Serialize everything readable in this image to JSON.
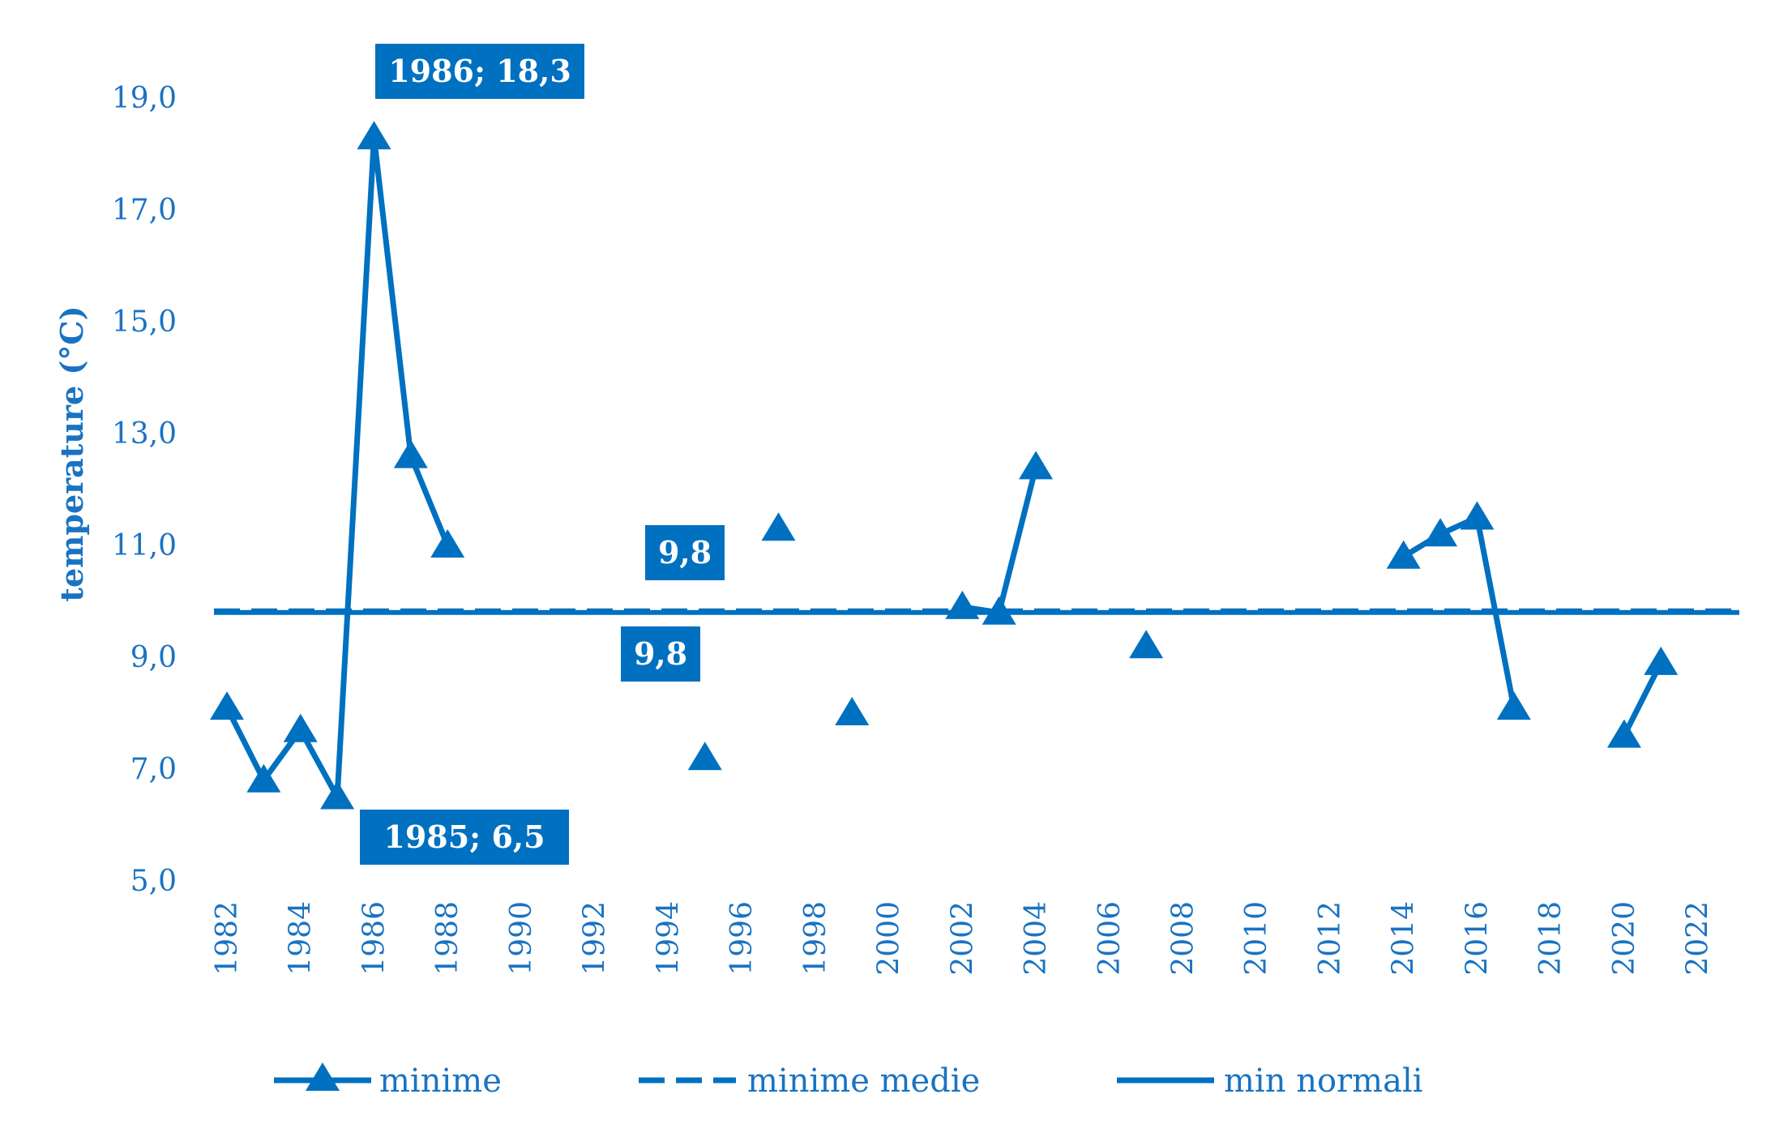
{
  "chart_data": {
    "type": "line",
    "ylabel": "temperature (°C)",
    "xlabel": "",
    "title": "",
    "ylim": [
      5.0,
      19.0
    ],
    "yticks": [
      "5,0",
      "7,0",
      "9,0",
      "11,0",
      "13,0",
      "15,0",
      "17,0",
      "19,0"
    ],
    "xlim": [
      1982,
      2023
    ],
    "xticks": [
      "1982",
      "1984",
      "1986",
      "1988",
      "1990",
      "1992",
      "1994",
      "1996",
      "1998",
      "2000",
      "2002",
      "2004",
      "2006",
      "2008",
      "2010",
      "2012",
      "2014",
      "2016",
      "2018",
      "2020",
      "2022"
    ],
    "colors": {
      "series": "#0070c0",
      "text": "#1a73c2"
    },
    "legend_position": "bottom",
    "series": [
      {
        "name": "minime",
        "style": "solid-triangle-markers",
        "points": [
          {
            "x": 1982,
            "y": 8.1
          },
          {
            "x": 1983,
            "y": 6.8
          },
          {
            "x": 1984,
            "y": 7.7
          },
          {
            "x": 1985,
            "y": 6.5
          },
          {
            "x": 1986,
            "y": 18.3
          },
          {
            "x": 1987,
            "y": 12.6
          },
          {
            "x": 1988,
            "y": 11.0
          },
          {
            "x": 1989,
            "y": null
          },
          {
            "x": 1990,
            "y": null
          },
          {
            "x": 1991,
            "y": null
          },
          {
            "x": 1992,
            "y": null
          },
          {
            "x": 1993,
            "y": null
          },
          {
            "x": 1994,
            "y": null
          },
          {
            "x": 1995,
            "y": 7.2
          },
          {
            "x": 1996,
            "y": null
          },
          {
            "x": 1997,
            "y": 11.3
          },
          {
            "x": 1998,
            "y": null
          },
          {
            "x": 1999,
            "y": 8.0
          },
          {
            "x": 2000,
            "y": null
          },
          {
            "x": 2001,
            "y": null
          },
          {
            "x": 2002,
            "y": 9.9
          },
          {
            "x": 2003,
            "y": 9.8
          },
          {
            "x": 2004,
            "y": 12.4
          },
          {
            "x": 2005,
            "y": null
          },
          {
            "x": 2006,
            "y": null
          },
          {
            "x": 2007,
            "y": 9.2
          },
          {
            "x": 2008,
            "y": null
          },
          {
            "x": 2009,
            "y": null
          },
          {
            "x": 2010,
            "y": null
          },
          {
            "x": 2011,
            "y": null
          },
          {
            "x": 2012,
            "y": null
          },
          {
            "x": 2013,
            "y": null
          },
          {
            "x": 2014,
            "y": 10.8
          },
          {
            "x": 2015,
            "y": 11.2
          },
          {
            "x": 2016,
            "y": 11.5
          },
          {
            "x": 2017,
            "y": 8.1
          },
          {
            "x": 2018,
            "y": null
          },
          {
            "x": 2019,
            "y": null
          },
          {
            "x": 2020,
            "y": 7.6
          },
          {
            "x": 2021,
            "y": 8.9
          }
        ]
      },
      {
        "name": "minime medie",
        "style": "dashed",
        "x_range": [
          1982,
          2023
        ],
        "y": 9.8
      },
      {
        "name": "min normali",
        "style": "solid",
        "x_range": [
          1982,
          2023
        ],
        "y": 9.8
      }
    ],
    "annotations": [
      {
        "text": "1986; 18,3",
        "x": 1986,
        "y": 18.3
      },
      {
        "text": "1985; 6,5",
        "x": 1985,
        "y": 6.5
      },
      {
        "text": "9,8",
        "x": 1994.5,
        "y": 9.8,
        "position": "above"
      },
      {
        "text": "9,8",
        "x": 1994.5,
        "y": 9.8,
        "position": "below"
      }
    ]
  }
}
